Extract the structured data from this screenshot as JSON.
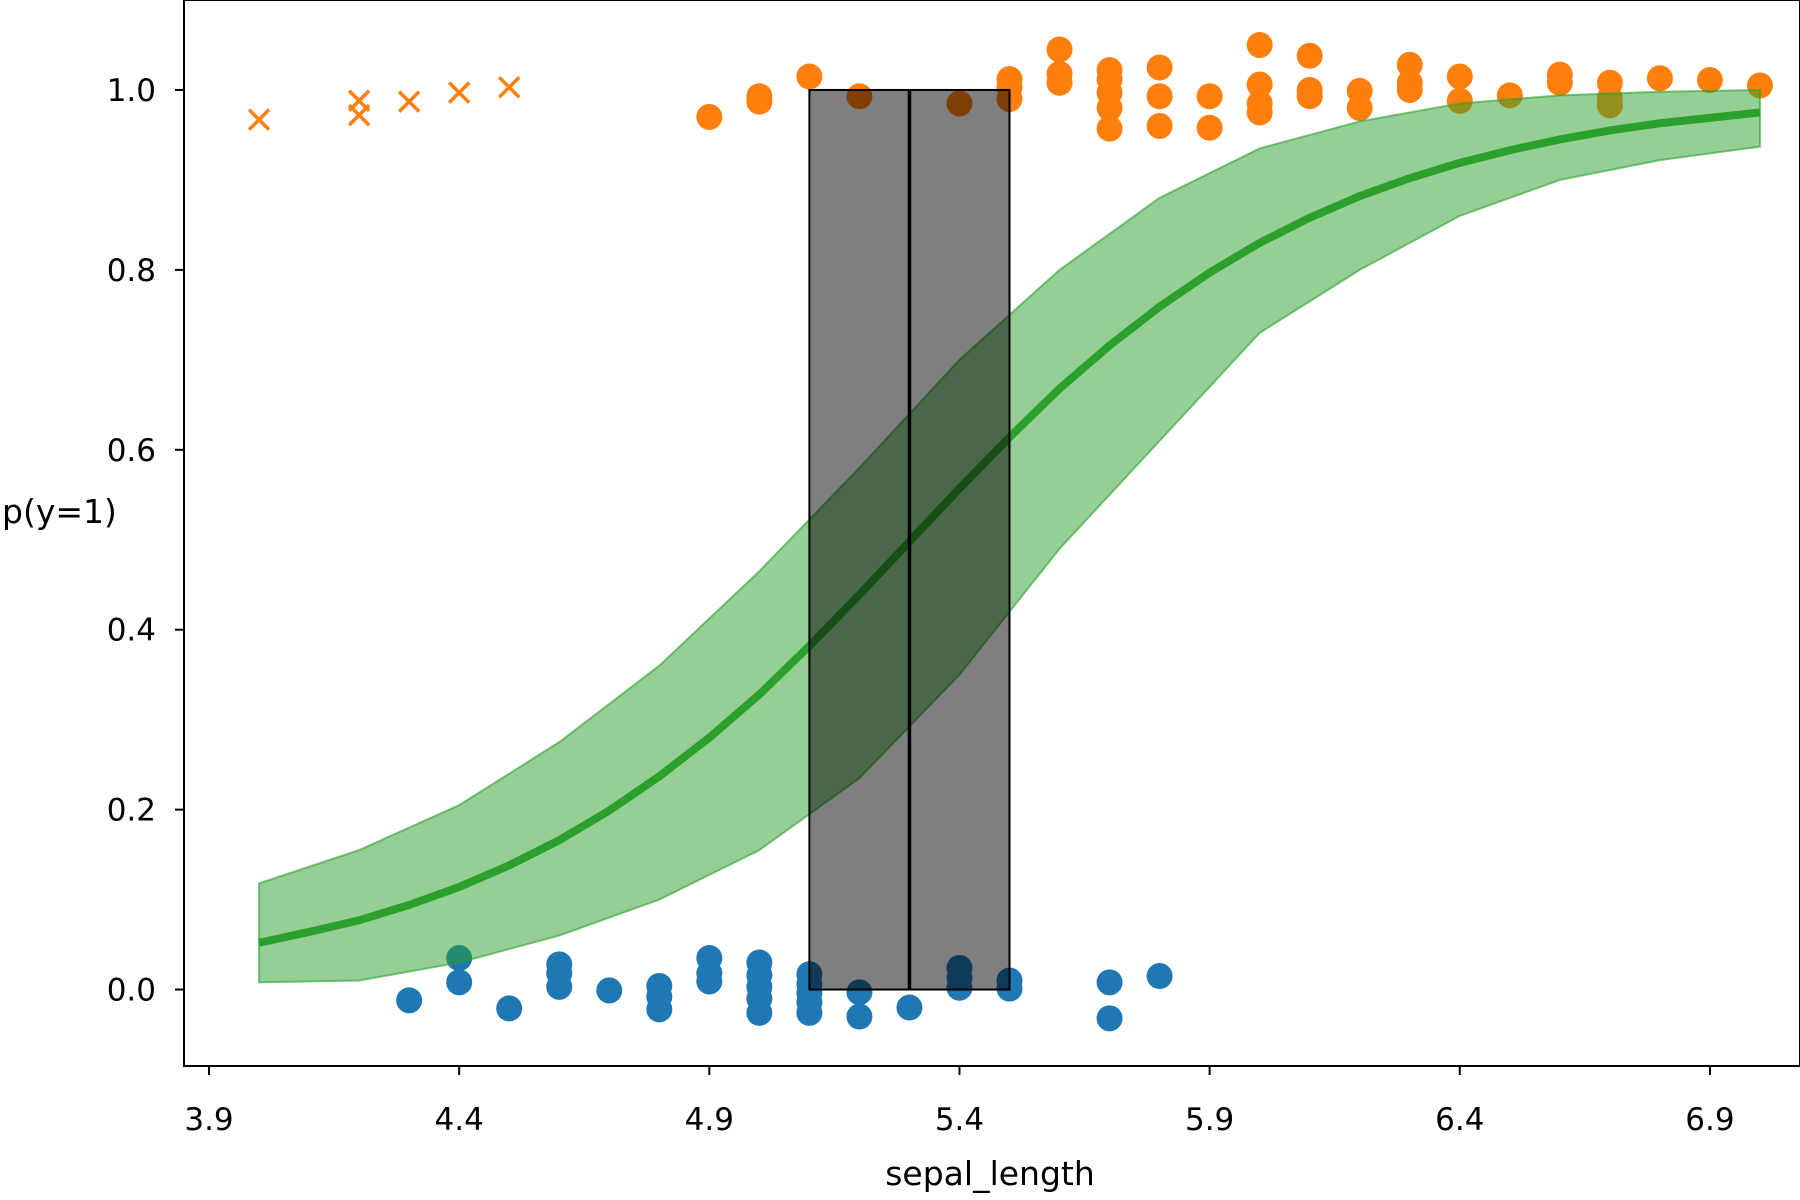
{
  "chart_data": {
    "type": "scatter",
    "title": "",
    "xlabel": "sepal_length",
    "ylabel": "p(y=1)",
    "xlim": [
      3.85,
      7.08
    ],
    "ylim": [
      -0.085,
      1.1
    ],
    "grid": false,
    "legend": "none",
    "x_ticks": [
      3.9,
      4.4,
      4.9,
      5.4,
      5.9,
      6.4,
      6.9
    ],
    "x_tick_labels": [
      "3.9",
      "4.4",
      "4.9",
      "5.4",
      "5.9",
      "6.4",
      "6.9"
    ],
    "y_ticks": [
      0.0,
      0.2,
      0.4,
      0.6,
      0.8,
      1.0
    ],
    "y_tick_labels": [
      "0.0",
      "0.2",
      "0.4",
      "0.6",
      "0.8",
      "1.0"
    ],
    "colors": {
      "class0": "#1f77b4",
      "class1": "#ff7f0e",
      "curve": "#2ca02c",
      "band_fill": "#2ca02c",
      "boundary": "#000000",
      "boundary_box": "#808080"
    },
    "series": [
      {
        "kind": "points",
        "marker": "circle",
        "color_key": "class0",
        "points": [
          [
            4.3,
            -0.012
          ],
          [
            4.4,
            0.008
          ],
          [
            4.4,
            0.035
          ],
          [
            4.5,
            -0.021
          ],
          [
            4.6,
            0.003
          ],
          [
            4.6,
            0.018
          ],
          [
            4.6,
            0.028
          ],
          [
            4.7,
            -0.001
          ],
          [
            4.8,
            -0.022
          ],
          [
            4.8,
            -0.008
          ],
          [
            4.8,
            0.004
          ],
          [
            4.9,
            0.009
          ],
          [
            4.9,
            0.018
          ],
          [
            4.9,
            0.035
          ],
          [
            5.0,
            -0.026
          ],
          [
            5.0,
            -0.01
          ],
          [
            5.0,
            0.003
          ],
          [
            5.0,
            0.016
          ],
          [
            5.0,
            0.03
          ],
          [
            5.1,
            -0.026
          ],
          [
            5.1,
            -0.014
          ],
          [
            5.1,
            -0.004
          ],
          [
            5.1,
            0.006
          ],
          [
            5.1,
            0.017
          ],
          [
            5.2,
            -0.03
          ],
          [
            5.2,
            -0.003
          ],
          [
            5.3,
            -0.02
          ],
          [
            5.4,
            0.002
          ],
          [
            5.4,
            0.013
          ],
          [
            5.4,
            0.024
          ],
          [
            5.5,
            0.001
          ],
          [
            5.5,
            0.01
          ],
          [
            5.7,
            -0.032
          ],
          [
            5.7,
            0.008
          ],
          [
            5.8,
            0.015
          ]
        ]
      },
      {
        "kind": "points",
        "marker": "circle",
        "color_key": "class1",
        "points": [
          [
            4.9,
            0.97
          ],
          [
            5.0,
            0.987
          ],
          [
            5.0,
            0.993
          ],
          [
            5.1,
            1.015
          ],
          [
            5.2,
            0.993
          ],
          [
            5.4,
            0.985
          ],
          [
            5.5,
            0.99
          ],
          [
            5.5,
            1.003
          ],
          [
            5.5,
            1.012
          ],
          [
            5.6,
            1.008
          ],
          [
            5.6,
            1.018
          ],
          [
            5.6,
            1.045
          ],
          [
            5.7,
            0.957
          ],
          [
            5.7,
            0.98
          ],
          [
            5.7,
            0.997
          ],
          [
            5.7,
            1.012
          ],
          [
            5.7,
            1.022
          ],
          [
            5.8,
            0.96
          ],
          [
            5.8,
            0.993
          ],
          [
            5.8,
            1.025
          ],
          [
            5.9,
            0.958
          ],
          [
            5.9,
            0.993
          ],
          [
            6.0,
            0.975
          ],
          [
            6.0,
            0.985
          ],
          [
            6.0,
            1.006
          ],
          [
            6.0,
            1.05
          ],
          [
            6.1,
            0.993
          ],
          [
            6.1,
            1.0
          ],
          [
            6.1,
            1.038
          ],
          [
            6.2,
            0.98
          ],
          [
            6.2,
            0.999
          ],
          [
            6.3,
            1.0
          ],
          [
            6.3,
            1.008
          ],
          [
            6.3,
            1.028
          ],
          [
            6.4,
            0.988
          ],
          [
            6.4,
            1.015
          ],
          [
            6.5,
            0.994
          ],
          [
            6.6,
            1.008
          ],
          [
            6.6,
            1.017
          ],
          [
            6.7,
            0.983
          ],
          [
            6.7,
            0.991
          ],
          [
            6.7,
            1.008
          ],
          [
            6.8,
            1.013
          ],
          [
            6.9,
            1.011
          ],
          [
            7.0,
            1.005
          ]
        ]
      },
      {
        "kind": "points",
        "marker": "x",
        "color_key": "class1",
        "points": [
          [
            4.0,
            0.967
          ],
          [
            4.2,
            0.972
          ],
          [
            4.2,
            0.988
          ],
          [
            4.3,
            0.987
          ],
          [
            4.4,
            0.997
          ],
          [
            4.5,
            1.003
          ]
        ]
      },
      {
        "kind": "line",
        "color_key": "curve",
        "points": [
          [
            4.0,
            0.052
          ],
          [
            4.1,
            0.064
          ],
          [
            4.2,
            0.077
          ],
          [
            4.3,
            0.094
          ],
          [
            4.4,
            0.114
          ],
          [
            4.5,
            0.138
          ],
          [
            4.6,
            0.166
          ],
          [
            4.7,
            0.199
          ],
          [
            4.8,
            0.237
          ],
          [
            4.9,
            0.28
          ],
          [
            5.0,
            0.328
          ],
          [
            5.1,
            0.382
          ],
          [
            5.2,
            0.439
          ],
          [
            5.3,
            0.498
          ],
          [
            5.4,
            0.557
          ],
          [
            5.5,
            0.614
          ],
          [
            5.6,
            0.668
          ],
          [
            5.7,
            0.716
          ],
          [
            5.8,
            0.759
          ],
          [
            5.9,
            0.797
          ],
          [
            6.0,
            0.83
          ],
          [
            6.1,
            0.858
          ],
          [
            6.2,
            0.882
          ],
          [
            6.3,
            0.902
          ],
          [
            6.4,
            0.919
          ],
          [
            6.5,
            0.933
          ],
          [
            6.6,
            0.945
          ],
          [
            6.7,
            0.955
          ],
          [
            6.8,
            0.963
          ],
          [
            6.9,
            0.969
          ],
          [
            7.0,
            0.975
          ]
        ]
      },
      {
        "kind": "band",
        "color_key": "band_fill",
        "x": [
          4.0,
          4.2,
          4.4,
          4.6,
          4.8,
          5.0,
          5.2,
          5.4,
          5.6,
          5.8,
          6.0,
          6.2,
          6.4,
          6.6,
          6.8,
          7.0
        ],
        "lower": [
          0.008,
          0.01,
          0.03,
          0.06,
          0.1,
          0.155,
          0.235,
          0.35,
          0.49,
          0.61,
          0.73,
          0.8,
          0.86,
          0.9,
          0.922,
          0.937
        ],
        "upper": [
          0.118,
          0.155,
          0.205,
          0.275,
          0.36,
          0.465,
          0.58,
          0.7,
          0.8,
          0.88,
          0.935,
          0.965,
          0.985,
          0.994,
          0.998,
          1.0
        ]
      },
      {
        "kind": "vline",
        "color_key": "boundary",
        "x": 5.3,
        "y_range": [
          0.0,
          1.0
        ]
      },
      {
        "kind": "span",
        "color_key": "boundary_box",
        "x_range": [
          5.1,
          5.5
        ],
        "y_range": [
          0.0,
          1.0
        ]
      }
    ]
  }
}
